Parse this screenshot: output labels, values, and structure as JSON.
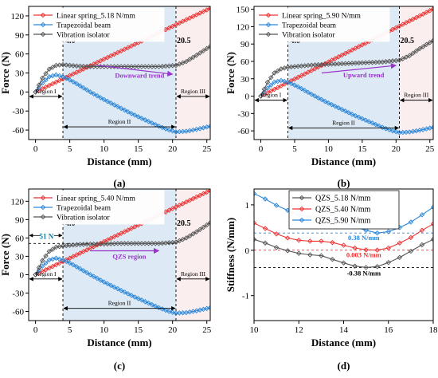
{
  "chart_data": [
    {
      "type": "line",
      "panel_label": "(a)",
      "xlabel": "Distance (mm)",
      "ylabel": "Force (N)",
      "xlim": [
        -1,
        25.5
      ],
      "ylim": [
        -75,
        135
      ],
      "xticks": [
        0,
        5,
        10,
        15,
        20,
        25
      ],
      "yticks": [
        -60,
        -30,
        0,
        30,
        60,
        90,
        120
      ],
      "grid": false,
      "legend_position": "top-left",
      "shaded_spans": [
        {
          "from": -1,
          "to": 4.0,
          "color": "#ffffff"
        },
        {
          "from": 4.0,
          "to": 20.5,
          "color": "#dde9f4"
        },
        {
          "from": 20.5,
          "to": 25.5,
          "color": "#fbeeee"
        }
      ],
      "boundaries": [
        4.0,
        20.5
      ],
      "boundary_labels": [
        "4.0",
        "20.5"
      ],
      "regions": [
        {
          "label": "Region I",
          "from": -1,
          "to": 4.0,
          "y": -7
        },
        {
          "label": "Region II",
          "from": 4.0,
          "to": 20.5,
          "y": -55
        },
        {
          "label": "Region III",
          "from": 20.5,
          "to": 25.5,
          "y": -7
        }
      ],
      "annotation": {
        "text": "Downward trend",
        "x1": 9,
        "y1": 42,
        "x2": 20,
        "y2": 28,
        "color": "#9933cc"
      },
      "series": [
        {
          "name": "Linear spring_5.18 N/mm",
          "color": "#ee3333",
          "marker": "diamond",
          "x": [
            0,
            25.5
          ],
          "y": [
            0,
            132.1
          ]
        },
        {
          "name": "Trapezoidal beam",
          "color": "#2a86d9",
          "marker": "diamond",
          "x": [
            0,
            1,
            2,
            3,
            4,
            5,
            6,
            8,
            10,
            12,
            14,
            16,
            18,
            19.5,
            20.5,
            22,
            23.5,
            25.5
          ],
          "y": [
            0,
            14,
            24,
            27,
            24,
            19,
            13,
            0,
            -12,
            -23,
            -34,
            -44,
            -54,
            -60,
            -63,
            -62,
            -59,
            -54
          ]
        },
        {
          "name": "Vibration isolator",
          "color": "#555555",
          "marker": "diamond",
          "x": [
            0,
            1,
            2,
            3,
            4,
            6,
            8,
            10,
            12,
            14,
            16,
            18,
            20.5,
            22,
            23.5,
            25.5
          ],
          "y": [
            0,
            22,
            36,
            42,
            43,
            41,
            40,
            40,
            40,
            40,
            40,
            40,
            42,
            48,
            58,
            72
          ]
        }
      ]
    },
    {
      "type": "line",
      "panel_label": "(b)",
      "xlabel": "Distance (mm)",
      "ylabel": "Force (N)",
      "xlim": [
        -1,
        25.5
      ],
      "ylim": [
        -75,
        155
      ],
      "xticks": [
        0,
        5,
        10,
        15,
        20,
        25
      ],
      "yticks": [
        -60,
        -30,
        0,
        30,
        60,
        90,
        120,
        150
      ],
      "grid": false,
      "legend_position": "top-left",
      "shaded_spans": [
        {
          "from": -1,
          "to": 4.0,
          "color": "#ffffff"
        },
        {
          "from": 4.0,
          "to": 20.5,
          "color": "#dde9f4"
        },
        {
          "from": 20.5,
          "to": 25.5,
          "color": "#fbeeee"
        }
      ],
      "boundaries": [
        4.0,
        20.5
      ],
      "boundary_labels": [
        "4.0",
        "20.5"
      ],
      "regions": [
        {
          "label": "Region I",
          "from": -1,
          "to": 4.0,
          "y": -7
        },
        {
          "label": "Region II",
          "from": 4.0,
          "to": 20.5,
          "y": -55
        },
        {
          "label": "Region III",
          "from": 20.5,
          "to": 25.5,
          "y": -7
        }
      ],
      "annotation": {
        "text": "Upward trend",
        "x1": 9,
        "y1": 40,
        "x2": 20,
        "y2": 53,
        "color": "#9933cc"
      },
      "series": [
        {
          "name": "Linear spring_5.90 N/mm",
          "color": "#ee3333",
          "marker": "diamond",
          "x": [
            0,
            25.5
          ],
          "y": [
            0,
            150.5
          ]
        },
        {
          "name": "Trapezoidal beam",
          "color": "#2a86d9",
          "marker": "diamond",
          "x": [
            0,
            1,
            2,
            3,
            4,
            5,
            6,
            8,
            10,
            12,
            14,
            16,
            18,
            19.5,
            20.5,
            22,
            23.5,
            25.5
          ],
          "y": [
            0,
            14,
            24,
            27,
            24,
            19,
            13,
            0,
            -12,
            -23,
            -34,
            -44,
            -54,
            -60,
            -63,
            -62,
            -59,
            -54
          ]
        },
        {
          "name": "Vibration isolator",
          "color": "#555555",
          "marker": "diamond",
          "x": [
            0,
            1,
            2,
            3,
            4,
            6,
            8,
            10,
            12,
            14,
            16,
            18,
            20.5,
            22,
            23.5,
            25.5
          ],
          "y": [
            0,
            24,
            40,
            47,
            50,
            52,
            54,
            55,
            56,
            57,
            58,
            59,
            62,
            70,
            82,
            96
          ]
        }
      ]
    },
    {
      "type": "line",
      "panel_label": "(c)",
      "xlabel": "Distance (mm)",
      "ylabel": "Force (N)",
      "xlim": [
        -1,
        25.5
      ],
      "ylim": [
        -75,
        140
      ],
      "xticks": [
        0,
        5,
        10,
        15,
        20,
        25
      ],
      "yticks": [
        -60,
        -30,
        0,
        30,
        60,
        90,
        120
      ],
      "grid": false,
      "legend_position": "top-left",
      "shaded_spans": [
        {
          "from": -1,
          "to": 4.0,
          "color": "#ffffff"
        },
        {
          "from": 4.0,
          "to": 20.5,
          "color": "#dde9f4"
        },
        {
          "from": 20.5,
          "to": 25.5,
          "color": "#fbeeee"
        }
      ],
      "boundaries": [
        4.0,
        20.5
      ],
      "boundary_labels": [
        "4.0",
        "20.5"
      ],
      "regions": [
        {
          "label": "Region I",
          "from": -1,
          "to": 4.0,
          "y": -7
        },
        {
          "label": "Region II",
          "from": 4.0,
          "to": 20.5,
          "y": -55
        },
        {
          "label": "Region III",
          "from": 20.5,
          "to": 25.5,
          "y": -7
        }
      ],
      "annotation": {
        "text": "QZS region",
        "x1": 8,
        "y1": 39,
        "x2": 18,
        "y2": 39,
        "color": "#9933cc"
      },
      "reference_line": {
        "y": 51,
        "label": "51 N",
        "color": "#000000"
      },
      "series": [
        {
          "name": "Linear spring_5.40 N/mm",
          "color": "#ee3333",
          "marker": "diamond",
          "x": [
            0,
            25.5
          ],
          "y": [
            0,
            137.7
          ]
        },
        {
          "name": "Trapezoidal beam",
          "color": "#2a86d9",
          "marker": "diamond",
          "x": [
            0,
            1,
            2,
            3,
            4,
            5,
            6,
            8,
            10,
            12,
            14,
            16,
            18,
            19.5,
            20.5,
            22,
            23.5,
            25.5
          ],
          "y": [
            0,
            14,
            24,
            27,
            24,
            19,
            13,
            0,
            -12,
            -23,
            -34,
            -44,
            -54,
            -60,
            -63,
            -62,
            -59,
            -54
          ]
        },
        {
          "name": "Vibration isolator",
          "color": "#555555",
          "marker": "diamond",
          "x": [
            0,
            1,
            2,
            3,
            4,
            6,
            8,
            10,
            12,
            14,
            16,
            18,
            20.5,
            22,
            23.5,
            25.5
          ],
          "y": [
            0,
            23,
            38,
            45,
            47,
            49,
            50,
            50,
            51,
            51,
            51,
            51,
            53,
            60,
            70,
            85
          ]
        }
      ]
    },
    {
      "type": "line",
      "panel_label": "(d)",
      "xlabel": "Distance (mm)",
      "ylabel": "Stiffness (N/mm)",
      "xlim": [
        10,
        18
      ],
      "ylim": [
        -1.55,
        1.35
      ],
      "xticks": [
        10,
        12,
        14,
        16,
        18
      ],
      "yticks": [
        -1,
        0,
        1
      ],
      "grid": false,
      "legend_position": "top-center",
      "reference_lines": [
        {
          "y": 0.38,
          "label": "0.38 N/mm",
          "color": "#2a86d9"
        },
        {
          "y": 0.003,
          "label": "0.003 N/mm",
          "color": "#ee3333"
        },
        {
          "y": -0.38,
          "label": "-0.38 N/mm",
          "color": "#000000"
        }
      ],
      "series": [
        {
          "name": "QZS_5.18 N/mm",
          "color": "#555555",
          "marker": "diamond",
          "x": [
            10,
            10.5,
            11,
            11.5,
            12,
            12.5,
            13,
            13.5,
            14,
            14.5,
            15,
            15.5,
            16,
            16.5,
            17,
            17.5,
            18
          ],
          "y": [
            0.24,
            0.16,
            0.06,
            -0.01,
            -0.07,
            -0.1,
            -0.12,
            -0.2,
            -0.28,
            -0.35,
            -0.38,
            -0.36,
            -0.27,
            -0.16,
            -0.02,
            0.12,
            0.24
          ]
        },
        {
          "name": "QZS_5.40 N/mm",
          "color": "#ee3333",
          "marker": "diamond",
          "x": [
            10,
            10.5,
            11,
            11.5,
            12,
            12.5,
            13,
            13.5,
            14,
            14.5,
            15,
            15.5,
            16,
            16.5,
            17,
            17.5,
            18
          ],
          "y": [
            0.6,
            0.48,
            0.36,
            0.27,
            0.22,
            0.2,
            0.2,
            0.17,
            0.11,
            0.05,
            0.01,
            0.003,
            0.05,
            0.16,
            0.28,
            0.44,
            0.58
          ]
        },
        {
          "name": "QZS_5.90 N/mm",
          "color": "#2a86d9",
          "marker": "diamond",
          "x": [
            10,
            10.5,
            11,
            11.5,
            12,
            12.5,
            13,
            13.5,
            14,
            14.5,
            15,
            15.5,
            16,
            16.5,
            17,
            17.5,
            18
          ],
          "y": [
            1.25,
            1.13,
            0.99,
            0.88,
            0.78,
            0.74,
            0.72,
            0.67,
            0.6,
            0.52,
            0.44,
            0.38,
            0.41,
            0.5,
            0.62,
            0.78,
            0.95
          ]
        }
      ]
    }
  ]
}
